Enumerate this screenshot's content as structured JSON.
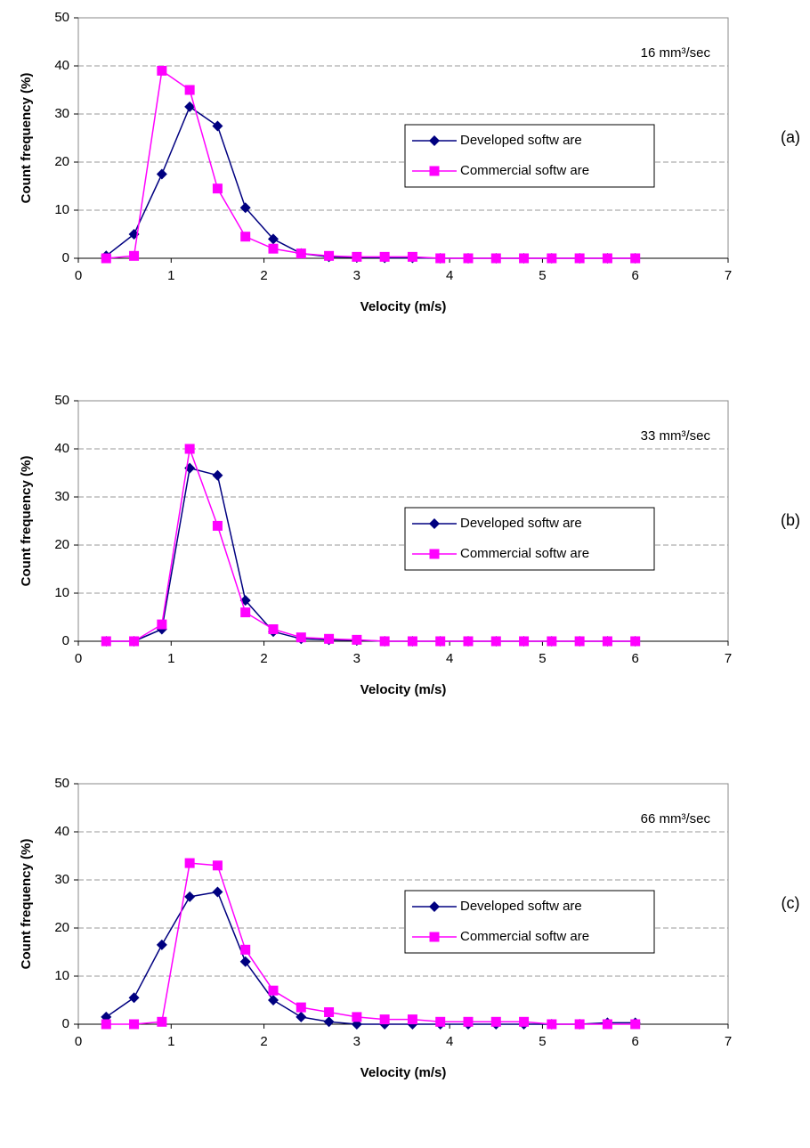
{
  "chart_data": [
    {
      "type": "line",
      "annotation": "16 mm³/sec",
      "panel_label": "(a)",
      "x_label": "Velocity (m/s)",
      "y_label": "Count frequency (%)",
      "x": [
        0.3,
        0.6,
        0.9,
        1.2,
        1.5,
        1.8,
        2.1,
        2.4,
        2.7,
        3.0,
        3.3,
        3.6,
        3.9,
        4.2,
        4.5,
        4.8,
        5.1,
        5.4,
        5.7,
        6.0
      ],
      "series": [
        {
          "name": "Developed softw are",
          "color": "#000080",
          "marker": "diamond",
          "values": [
            0.5,
            5,
            17.5,
            31.5,
            27.5,
            10.5,
            4,
            1,
            0.3,
            0.2,
            0.1,
            0.1,
            0,
            0,
            0,
            0,
            0,
            0,
            0,
            0
          ]
        },
        {
          "name": "Commercial softw are",
          "color": "#ff00ff",
          "marker": "square",
          "values": [
            0,
            0.5,
            39,
            35,
            14.5,
            4.5,
            2,
            1,
            0.5,
            0.3,
            0.3,
            0.3,
            0,
            0,
            0,
            0,
            0,
            0,
            0,
            0
          ]
        }
      ],
      "xlim": [
        0,
        7
      ],
      "xticks": [
        0,
        1,
        2,
        3,
        4,
        5,
        6,
        7
      ],
      "ylim": [
        0,
        50
      ],
      "yticks": [
        0,
        10,
        20,
        30,
        40,
        50
      ],
      "grid": true
    },
    {
      "type": "line",
      "annotation": "33 mm³/sec",
      "panel_label": "(b)",
      "x_label": "Velocity (m/s)",
      "y_label": "Count frequency (%)",
      "x": [
        0.3,
        0.6,
        0.9,
        1.2,
        1.5,
        1.8,
        2.1,
        2.4,
        2.7,
        3.0,
        3.3,
        3.6,
        3.9,
        4.2,
        4.5,
        4.8,
        5.1,
        5.4,
        5.7,
        6.0
      ],
      "series": [
        {
          "name": "Developed softw are",
          "color": "#000080",
          "marker": "diamond",
          "values": [
            0,
            0,
            2.5,
            36,
            34.5,
            8.5,
            2,
            0.5,
            0.3,
            0.2,
            0,
            0,
            0,
            0,
            0,
            0,
            0,
            0,
            0,
            0
          ]
        },
        {
          "name": "Commercial softw are",
          "color": "#ff00ff",
          "marker": "square",
          "values": [
            0,
            0,
            3.5,
            40,
            24,
            6,
            2.5,
            0.8,
            0.5,
            0.3,
            0,
            0,
            0,
            0,
            0,
            0,
            0,
            0,
            0,
            0
          ]
        }
      ],
      "xlim": [
        0,
        7
      ],
      "xticks": [
        0,
        1,
        2,
        3,
        4,
        5,
        6,
        7
      ],
      "ylim": [
        0,
        50
      ],
      "yticks": [
        0,
        10,
        20,
        30,
        40,
        50
      ],
      "grid": true
    },
    {
      "type": "line",
      "annotation": "66 mm³/sec",
      "panel_label": "(c)",
      "x_label": "Velocity (m/s)",
      "y_label": "Count frequency (%)",
      "x": [
        0.3,
        0.6,
        0.9,
        1.2,
        1.5,
        1.8,
        2.1,
        2.4,
        2.7,
        3.0,
        3.3,
        3.6,
        3.9,
        4.2,
        4.5,
        4.8,
        5.1,
        5.4,
        5.7,
        6.0
      ],
      "series": [
        {
          "name": "Developed softw are",
          "color": "#000080",
          "marker": "diamond",
          "values": [
            1.5,
            5.5,
            16.5,
            26.5,
            27.5,
            13,
            5,
            1.5,
            0.5,
            0,
            0,
            0,
            0,
            0,
            0,
            0,
            0,
            0,
            0.3,
            0.3
          ]
        },
        {
          "name": "Commercial softw are",
          "color": "#ff00ff",
          "marker": "square",
          "values": [
            0,
            0,
            0.5,
            33.5,
            33,
            15.5,
            7,
            3.5,
            2.5,
            1.5,
            1,
            1,
            0.5,
            0.5,
            0.5,
            0.5,
            0,
            0,
            0,
            0
          ]
        }
      ],
      "xlim": [
        0,
        7
      ],
      "xticks": [
        0,
        1,
        2,
        3,
        4,
        5,
        6,
        7
      ],
      "ylim": [
        0,
        50
      ],
      "yticks": [
        0,
        10,
        20,
        30,
        40,
        50
      ],
      "grid": true
    }
  ]
}
